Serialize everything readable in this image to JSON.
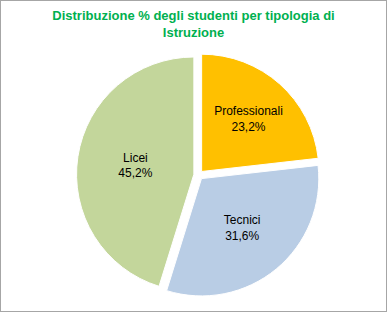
{
  "chart_data": {
    "type": "pie",
    "title": "Distribuzione % degli studenti per tipologia di Istruzione",
    "categories": [
      "Professionali",
      "Tecnici",
      "Licei"
    ],
    "values": [
      23.2,
      31.6,
      45.2
    ],
    "value_labels": [
      "23,2%",
      "31,6%",
      "45,2%"
    ],
    "colors": [
      "#ffc000",
      "#b9cde5",
      "#c3d69b"
    ],
    "data_labels": true
  }
}
